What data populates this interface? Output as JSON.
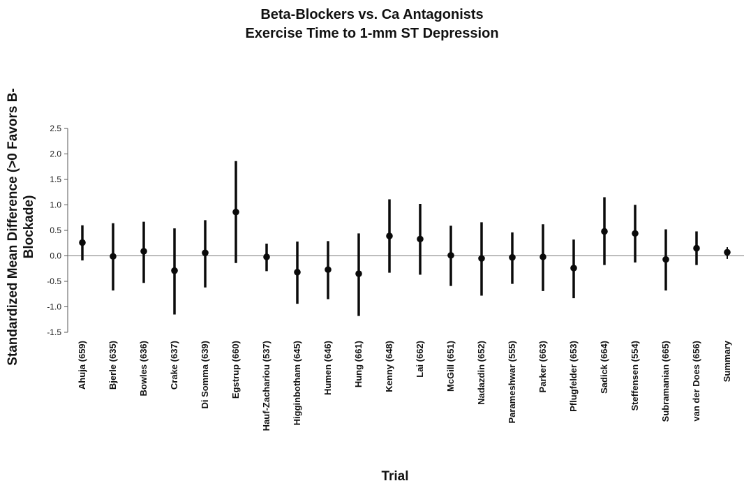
{
  "chart_data": {
    "type": "scatter",
    "title": "Beta-Blockers vs. Ca Antagonists",
    "subtitle": "Exercise Time to 1-mm ST Depression",
    "xlabel": "Trial",
    "ylabel": [
      "Standardized Mean Difference (>0 Favors B-",
      "Blockade)"
    ],
    "ylim": [
      -1.5,
      2.5
    ],
    "yticks": [
      "2.5",
      "2.0",
      "1.5",
      "1.0",
      "0.5",
      "0.0",
      "-0.5",
      "-1.0",
      "-1.5"
    ],
    "grid": false,
    "reference_line": 0,
    "categories": [
      "Ahuja  (659)",
      "Bjerle  (635)",
      "Bowles  (636)",
      "Crake  (637)",
      "Di Somma  (639)",
      "Egstrup  (660)",
      "Hauf-Zachariou  (537)",
      "Higginbotham  (645)",
      "Humen  (646)",
      "Hung  (661)",
      "Kenny  (648)",
      "Lai  (662)",
      "McGill  (651)",
      "Nadazdin  (652)",
      "Parameshwar  (555)",
      "Parker  (663)",
      "Pflugfelder  (653)",
      "Sadick  (664)",
      "Steffensen  (554)",
      "Subramanian  (665)",
      "van der Does  (656)",
      "Summary"
    ],
    "estimate": [
      0.26,
      -0.01,
      0.09,
      -0.29,
      0.06,
      0.86,
      -0.02,
      -0.32,
      -0.27,
      -0.35,
      0.39,
      0.33,
      0.01,
      -0.05,
      -0.03,
      -0.02,
      -0.24,
      0.48,
      0.44,
      -0.07,
      0.15,
      0.07
    ],
    "lower": [
      -0.09,
      -0.68,
      -0.53,
      -1.15,
      -0.62,
      -0.14,
      -0.3,
      -0.94,
      -0.85,
      -1.18,
      -0.33,
      -0.37,
      -0.59,
      -0.78,
      -0.55,
      -0.69,
      -0.83,
      -0.18,
      -0.13,
      -0.68,
      -0.18,
      -0.06
    ],
    "upper": [
      0.6,
      0.64,
      0.67,
      0.54,
      0.7,
      1.86,
      0.24,
      0.28,
      0.29,
      0.44,
      1.11,
      1.02,
      0.59,
      0.66,
      0.46,
      0.62,
      0.32,
      1.15,
      1.0,
      0.52,
      0.48,
      0.17
    ]
  }
}
